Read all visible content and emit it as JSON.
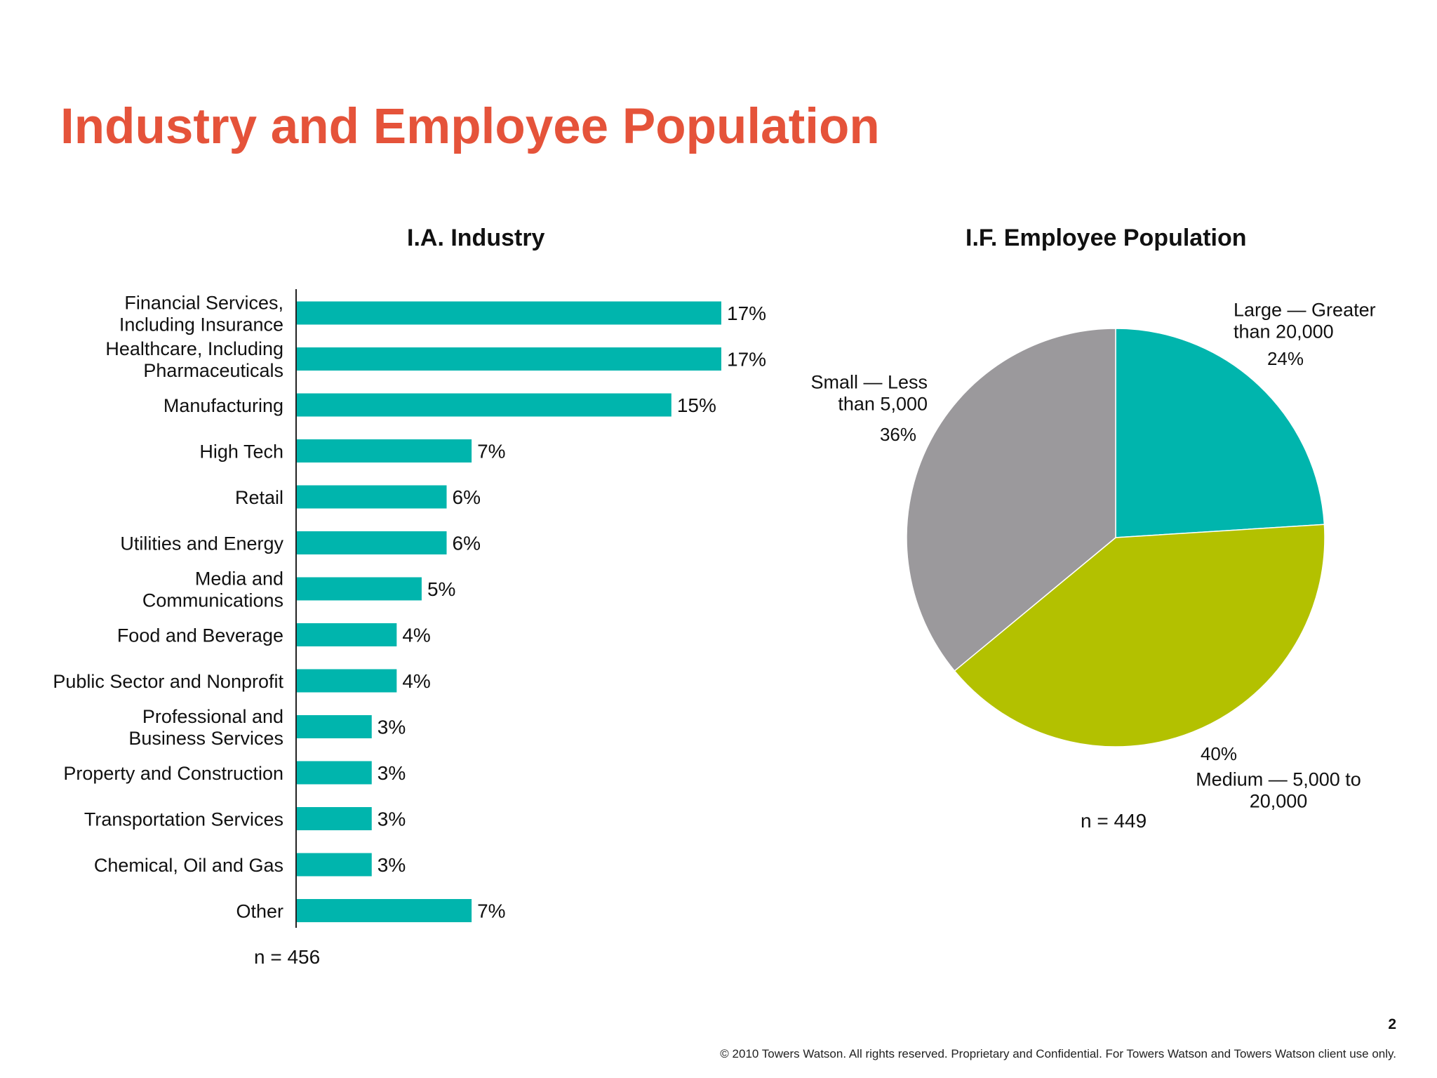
{
  "page": {
    "title": "Industry and Employee Population",
    "page_number": "2",
    "footer": "© 2010 Towers Watson. All rights reserved. Proprietary and Confidential. For Towers Watson and Towers Watson client use only."
  },
  "chart_data": [
    {
      "type": "bar",
      "orientation": "horizontal",
      "title": "I.A. Industry",
      "n_label": "n = 456",
      "color": "#00b5ad",
      "xlim": [
        0,
        17
      ],
      "categories": [
        [
          "Financial Services,",
          "Including Insurance"
        ],
        [
          "Healthcare, Including",
          "Pharmaceuticals"
        ],
        [
          "Manufacturing"
        ],
        [
          "High Tech"
        ],
        [
          "Retail"
        ],
        [
          "Utilities and Energy"
        ],
        [
          "Media and",
          "Communications"
        ],
        [
          "Food and Beverage"
        ],
        [
          "Public Sector and Nonprofit"
        ],
        [
          "Professional and",
          "Business Services"
        ],
        [
          "Property and Construction"
        ],
        [
          "Transportation Services"
        ],
        [
          "Chemical, Oil and Gas"
        ],
        [
          "Other"
        ]
      ],
      "values": [
        17,
        17,
        15,
        7,
        6,
        6,
        5,
        4,
        4,
        3,
        3,
        3,
        3,
        7
      ],
      "value_labels": [
        "17%",
        "17%",
        "15%",
        "7%",
        "6%",
        "6%",
        "5%",
        "4%",
        "4%",
        "3%",
        "3%",
        "3%",
        "3%",
        "7%"
      ]
    },
    {
      "type": "pie",
      "title": "I.F. Employee Population",
      "n_label": "n = 449",
      "slices": [
        {
          "label": [
            "Large — Greater",
            "than 20,000"
          ],
          "value": 24,
          "value_label": "24%",
          "color": "#00b5ad"
        },
        {
          "label": [
            "Medium — 5,000 to",
            "20,000"
          ],
          "value": 40,
          "value_label": "40%",
          "color": "#b3c100"
        },
        {
          "label": [
            "Small — Less",
            "than 5,000"
          ],
          "value": 36,
          "value_label": "36%",
          "color": "#9b999c"
        }
      ]
    }
  ]
}
